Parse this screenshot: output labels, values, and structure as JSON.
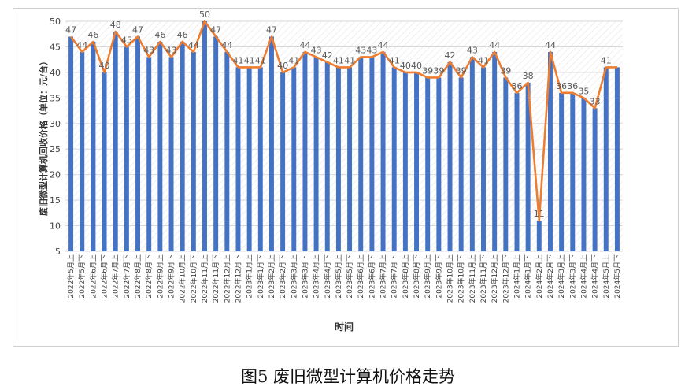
{
  "caption": "图5 废旧微型计算机价格走势",
  "chart_data": {
    "type": "bar",
    "title": "",
    "xlabel": "时间",
    "ylabel": "废旧微型计算机回收价格（单位：元/台）",
    "ylim": [
      5,
      50
    ],
    "yticks": [
      5,
      10,
      15,
      20,
      25,
      30,
      35,
      40,
      45,
      50
    ],
    "grid": true,
    "legend": "none",
    "colors": {
      "bar": "#4472c4",
      "line": "#ed7d31",
      "grid": "#d9d9d9",
      "label": "#595959"
    },
    "categories": [
      "2022年5月上",
      "2022年5月下",
      "2022年6月上",
      "2022年6月下",
      "2022年7月上",
      "2022年7月下",
      "2022年8月上",
      "2022年8月下",
      "2022年9月上",
      "2022年9月下",
      "2022年10月上",
      "2022年10月下",
      "2022年11月上",
      "2022年11月下",
      "2022年12月上",
      "2022年12月下",
      "2023年1月上",
      "2023年1月下",
      "2023年2月上",
      "2023年2月下",
      "2023年3月上",
      "2023年3月下",
      "2023年4月上",
      "2023年4月下",
      "2023年5月上",
      "2023年5月下",
      "2023年6月上",
      "2023年6月下",
      "2023年7月上",
      "2023年7月下",
      "2023年8月上",
      "2023年8月下",
      "2023年9月上",
      "2023年9月下",
      "2023年10月上",
      "2023年10月下",
      "2023年11月上",
      "2023年11月下",
      "2023年12月上",
      "2023年12月下",
      "2024年1月上",
      "2024年1月下",
      "2024年2月上",
      "2024年2月下",
      "2024年3月上",
      "2024年3月下",
      "2024年4月上",
      "2024年4月下",
      "2024年5月上",
      "2024年5月下"
    ],
    "values": [
      47,
      44,
      46,
      40,
      48,
      45,
      47,
      43,
      46,
      43,
      46,
      44,
      50,
      47,
      44,
      41,
      41,
      41,
      47,
      40,
      41,
      44,
      43,
      42,
      41,
      41,
      43,
      43,
      44,
      41,
      40,
      40,
      39,
      39,
      42,
      39,
      43,
      41,
      44,
      39,
      36,
      38,
      11,
      44,
      36,
      36,
      35,
      33,
      41,
      41
    ],
    "data_labels": [
      "47",
      "44",
      "46",
      "40",
      "48",
      "45",
      "47",
      "43",
      "46",
      "43",
      "46",
      "44",
      "50",
      "47",
      "44",
      "41",
      "41",
      "41",
      "47",
      "40",
      "41",
      "44",
      "43",
      "42",
      "41",
      "41",
      "43",
      "43",
      "44",
      "41",
      "40",
      "40",
      "39",
      "39",
      "42",
      "39",
      "43",
      "41",
      "44",
      "39",
      "36",
      "38",
      "11",
      "44",
      "36",
      "36",
      "35",
      "33",
      "41",
      ""
    ]
  }
}
